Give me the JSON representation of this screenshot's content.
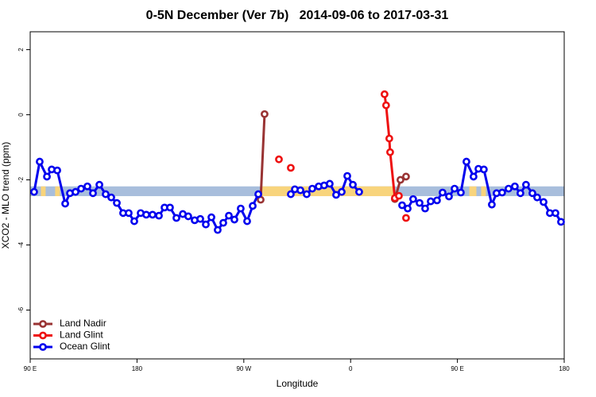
{
  "chart_data": {
    "type": "line",
    "title": "0-5N December (Ver 7b)   2014-09-06 to 2017-03-31",
    "x_label": "Longitude",
    "y_label": "XCO2 - MLO trend (ppm)",
    "xlim": [
      90,
      540
    ],
    "ylim": [
      -7.5,
      2.55
    ],
    "xticks": [
      {
        "value": 90,
        "label": "90 E"
      },
      180,
      {
        "value": 270,
        "label": "90 W"
      },
      {
        "value": 360,
        "label": "0"
      },
      {
        "value": 450,
        "label": "90 E"
      },
      {
        "value": 540,
        "label": "180"
      }
    ],
    "yticks": [
      2,
      0,
      -2,
      -4,
      -6
    ],
    "legend": "bottom-left",
    "band": {
      "ylim": [
        -2.5,
        -2.2
      ],
      "color": "#a8bedc",
      "segments": [
        {
          "xlim": [
            99,
            103
          ],
          "color": "#f8d47c"
        },
        {
          "xlim": [
            111,
            115
          ],
          "color": "#f8d47c"
        },
        {
          "xlim": [
            285,
            396
          ],
          "color": "#f8d47c"
        },
        {
          "xlim": [
            460,
            466
          ],
          "color": "#f8d47c"
        },
        {
          "xlim": [
            470,
            474
          ],
          "color": "#f8d47c"
        }
      ]
    },
    "series": [
      {
        "name": "Land Nadir",
        "color": "#993333",
        "x": [
          284.2,
          287.5,
          null,
          397.3,
          402.0,
          406.7
        ],
        "values": [
          -2.61,
          0.02,
          null,
          -2.59,
          -2.0,
          -1.9
        ]
      },
      {
        "name": "Land Glint",
        "color": "#ee1111",
        "x": [
          299.6,
          null,
          309.6,
          null,
          388.6,
          389.9,
          392.6,
          393.3,
          397.3,
          null,
          400.7,
          null,
          406.7
        ],
        "values": [
          -1.37,
          null,
          -1.63,
          null,
          0.63,
          0.29,
          -0.73,
          -1.15,
          -2.56,
          null,
          -2.49,
          null,
          -3.17
        ]
      },
      {
        "name": "Ocean Glint",
        "color": "#0000ee",
        "x": [
          93.3,
          98.0,
          104.1,
          108.1,
          112.8,
          119.5,
          123.5,
          128.2,
          132.9,
          138.2,
          142.9,
          148.3,
          153.6,
          158.3,
          163.0,
          168.3,
          173.0,
          177.7,
          183.1,
          187.8,
          193.1,
          198.5,
          203.2,
          207.8,
          213.2,
          218.6,
          223.2,
          228.6,
          233.3,
          238.0,
          242.7,
          248.0,
          252.7,
          257.4,
          262.1,
          267.4,
          272.8,
          277.5,
          282.2,
          null,
          309.6,
          313.0,
          317.7,
          323.0,
          327.7,
          333.1,
          337.7,
          342.4,
          347.8,
          352.5,
          357.2,
          361.9,
          367.2,
          null,
          403.4,
          408.1,
          412.7,
          418.1,
          422.8,
          427.5,
          432.8,
          437.5,
          442.9,
          447.6,
          452.9,
          457.6,
          463.6,
          467.7,
          472.3,
          479.0,
          483.0,
          487.7,
          493.1,
          498.4,
          503.1,
          507.8,
          513.2,
          517.2,
          522.6,
          527.9,
          532.6,
          537.3
        ],
        "values": [
          -2.37,
          -1.44,
          -1.9,
          -1.68,
          -1.71,
          -2.73,
          -2.41,
          -2.37,
          -2.27,
          -2.2,
          -2.41,
          -2.15,
          -2.44,
          -2.54,
          -2.71,
          -3.02,
          -3.02,
          -3.27,
          -3.02,
          -3.07,
          -3.07,
          -3.1,
          -2.85,
          -2.85,
          -3.17,
          -3.05,
          -3.12,
          -3.24,
          -3.2,
          -3.37,
          -3.15,
          -3.54,
          -3.32,
          -3.1,
          -3.22,
          -2.88,
          -3.27,
          -2.8,
          -2.44,
          null,
          -2.44,
          -2.29,
          -2.32,
          -2.44,
          -2.27,
          -2.2,
          -2.17,
          -2.12,
          -2.46,
          -2.37,
          -1.88,
          -2.15,
          -2.37,
          null,
          -2.78,
          -2.88,
          -2.59,
          -2.71,
          -2.88,
          -2.66,
          -2.63,
          -2.39,
          -2.51,
          -2.27,
          -2.39,
          -1.44,
          -1.9,
          -1.66,
          -1.68,
          -2.76,
          -2.41,
          -2.39,
          -2.27,
          -2.2,
          -2.41,
          -2.15,
          -2.41,
          -2.54,
          -2.68,
          -3.02,
          -3.02,
          -3.29
        ]
      }
    ]
  }
}
